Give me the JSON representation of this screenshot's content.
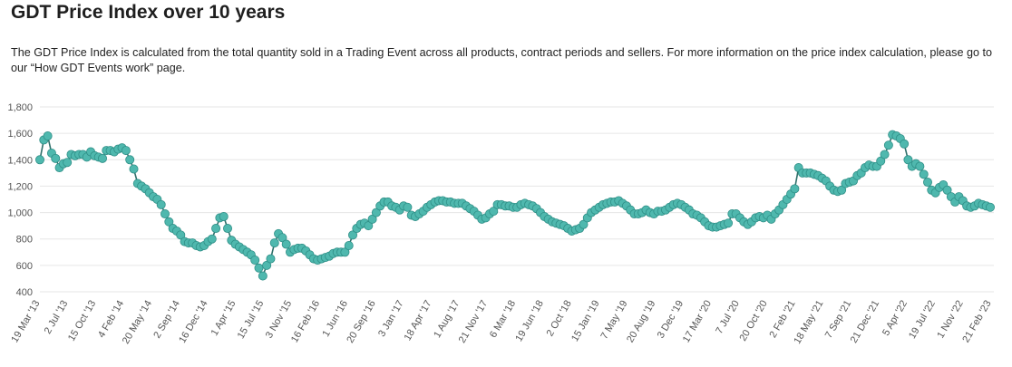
{
  "title": "GDT Price Index over 10 years",
  "description": "The GDT Price Index is calculated from the total quantity sold in a Trading Event across all products, contract periods and sellers. For more information on the price index calculation, please go to our “How GDT Events work” page.",
  "colors": {
    "series": "#4fb8ae",
    "series_stroke": "#2f8f87",
    "line": "#2f6f6a",
    "grid": "#e6e6e6"
  },
  "chart_data": {
    "type": "line",
    "title": "GDT Price Index over 10 years",
    "xlabel": "",
    "ylabel": "",
    "ylim": [
      400,
      1800
    ],
    "yticks": [
      "400",
      "600",
      "800",
      "1,000",
      "1,200",
      "1,400",
      "1,600",
      "1,800"
    ],
    "ytick_values": [
      400,
      600,
      800,
      1000,
      1200,
      1400,
      1600,
      1800
    ],
    "xtick_labels": [
      "19 Mar '13",
      "2 Jul '13",
      "15 Oct '13",
      "4 Feb '14",
      "20 May '14",
      "2 Sep '14",
      "16 Dec '14",
      "1 Apr '15",
      "15 Jul '15",
      "3 Nov '15",
      "16 Feb '16",
      "1 Jun '16",
      "20 Sep '16",
      "3 Jan '17",
      "18 Apr '17",
      "1 Aug '17",
      "21 Nov '17",
      "6 Mar '18",
      "19 Jun '18",
      "2 Oct '18",
      "15 Jan '19",
      "7 May '19",
      "20 Aug '19",
      "3 Dec '19",
      "17 Mar '20",
      "7 Jul '20",
      "20 Oct '20",
      "2 Feb '21",
      "18 May '21",
      "7 Sep '21",
      "21 Dec '21",
      "5 Apr '22",
      "19 Jul '22",
      "1 Nov '22",
      "21 Feb '23"
    ],
    "series": [
      {
        "name": "GDT Price Index",
        "values": [
          1400,
          1550,
          1580,
          1450,
          1410,
          1340,
          1370,
          1380,
          1440,
          1430,
          1440,
          1440,
          1420,
          1460,
          1430,
          1420,
          1410,
          1470,
          1470,
          1460,
          1480,
          1490,
          1470,
          1400,
          1330,
          1220,
          1200,
          1180,
          1150,
          1120,
          1100,
          1060,
          990,
          930,
          880,
          860,
          830,
          780,
          770,
          770,
          750,
          740,
          750,
          780,
          800,
          880,
          960,
          970,
          880,
          790,
          760,
          740,
          720,
          700,
          680,
          640,
          580,
          520,
          600,
          650,
          770,
          840,
          810,
          760,
          700,
          720,
          730,
          730,
          710,
          680,
          650,
          640,
          650,
          660,
          670,
          690,
          700,
          700,
          700,
          750,
          830,
          880,
          910,
          920,
          900,
          950,
          1000,
          1050,
          1080,
          1080,
          1050,
          1040,
          1020,
          1050,
          1040,
          980,
          970,
          990,
          1010,
          1040,
          1060,
          1080,
          1090,
          1090,
          1080,
          1080,
          1070,
          1070,
          1070,
          1050,
          1030,
          1010,
          980,
          950,
          960,
          990,
          1010,
          1060,
          1060,
          1050,
          1050,
          1040,
          1040,
          1060,
          1070,
          1060,
          1050,
          1030,
          1000,
          970,
          950,
          930,
          920,
          910,
          900,
          880,
          860,
          870,
          880,
          910,
          960,
          1000,
          1020,
          1040,
          1060,
          1070,
          1080,
          1080,
          1090,
          1070,
          1050,
          1020,
          990,
          990,
          1000,
          1020,
          1000,
          990,
          1010,
          1010,
          1020,
          1040,
          1060,
          1070,
          1060,
          1040,
          1020,
          990,
          980,
          960,
          930,
          900,
          890,
          890,
          900,
          910,
          920,
          990,
          990,
          960,
          930,
          910,
          930,
          960,
          970,
          960,
          980,
          950,
          990,
          1020,
          1060,
          1100,
          1140,
          1180,
          1340,
          1300,
          1300,
          1300,
          1290,
          1280,
          1260,
          1240,
          1200,
          1170,
          1160,
          1170,
          1220,
          1230,
          1240,
          1280,
          1300,
          1340,
          1360,
          1350,
          1350,
          1390,
          1440,
          1510,
          1590,
          1580,
          1560,
          1520,
          1400,
          1350,
          1370,
          1350,
          1290,
          1230,
          1170,
          1150,
          1190,
          1210,
          1170,
          1120,
          1080,
          1120,
          1090,
          1050,
          1040,
          1050,
          1070,
          1060,
          1050,
          1040
        ]
      }
    ]
  }
}
